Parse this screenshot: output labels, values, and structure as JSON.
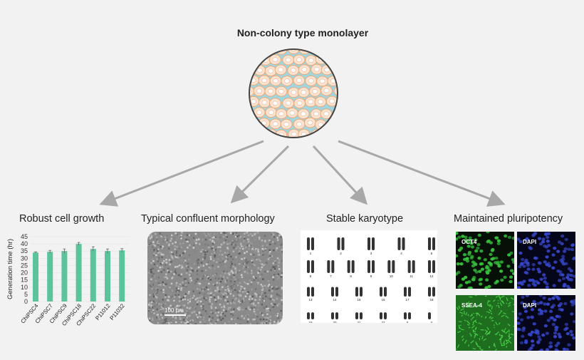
{
  "title": "Non-colony type monolayer",
  "sections": [
    {
      "label": "Robust cell growth"
    },
    {
      "label": "Typical confluent morphology",
      "scale_bar": "100 µm"
    },
    {
      "label": "Stable karyotype",
      "chromosomes": [
        "1",
        "2",
        "3",
        "4",
        "5",
        "6",
        "7",
        "8",
        "9",
        "10",
        "11",
        "12",
        "13",
        "14",
        "15",
        "16",
        "17",
        "18",
        "19",
        "20",
        "21",
        "22",
        "X",
        "Y"
      ]
    },
    {
      "label": "Maintained pluripotency",
      "panels": [
        "OCT4",
        "DAPI",
        "SSEA-4",
        "DAPI"
      ]
    }
  ],
  "colors": {
    "bar": "#5cc49a",
    "cell": "#fde3cf",
    "cell_border": "#e8a97a",
    "medium": "#9fd6e0",
    "green": "#2fbf3a",
    "blue": "#2b3fbf"
  },
  "chart_data": {
    "type": "bar",
    "categories": [
      "ChiPSC4",
      "ChiPSC7",
      "ChiPSC9",
      "ChiPSC18",
      "ChiPSC22",
      "P11012",
      "P11032"
    ],
    "values": [
      34,
      34.5,
      35,
      40,
      36.5,
      35,
      35.5
    ],
    "errors": [
      0.5,
      1,
      1.5,
      1,
      1.5,
      1.5,
      1.2
    ],
    "ylabel": "Generation time (hr)",
    "ylim": [
      0,
      45
    ],
    "yticks": [
      0,
      5,
      10,
      15,
      20,
      25,
      30,
      35,
      40,
      45
    ],
    "grid": true
  }
}
